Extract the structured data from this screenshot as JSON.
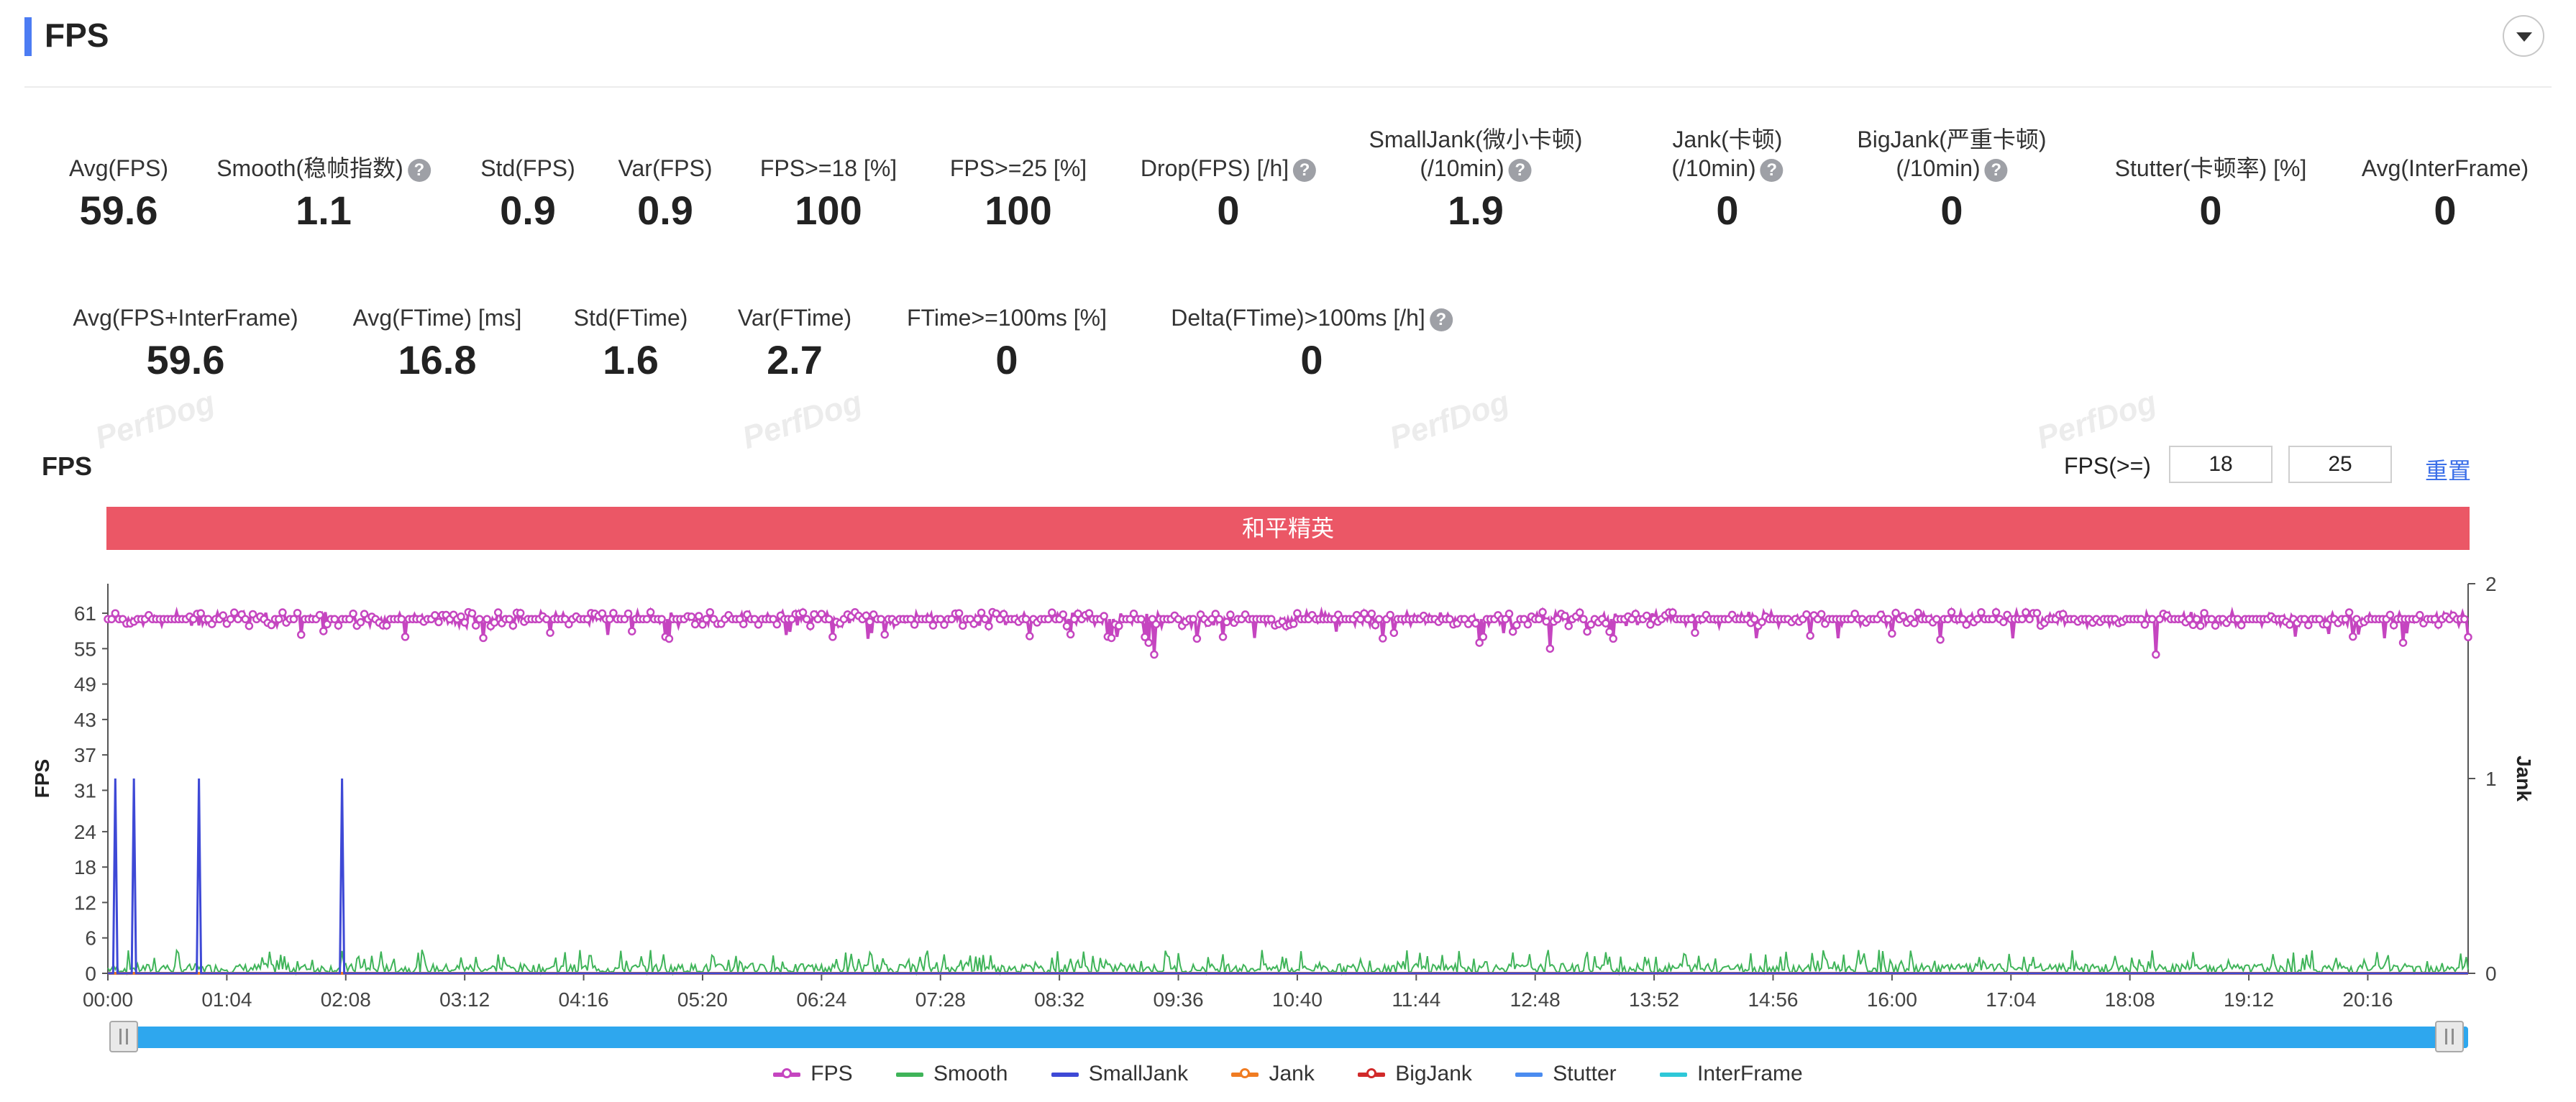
{
  "page": {
    "title": "FPS",
    "watermark": "PerfDog"
  },
  "metrics_row1": [
    {
      "label": "Avg(FPS)",
      "value": "59.6",
      "help": false
    },
    {
      "label": "Smooth(稳帧指数)",
      "value": "1.1",
      "help": true
    },
    {
      "label": "Std(FPS)",
      "value": "0.9",
      "help": false
    },
    {
      "label": "Var(FPS)",
      "value": "0.9",
      "help": false
    },
    {
      "label": "FPS>=18 [%]",
      "value": "100",
      "help": false
    },
    {
      "label": "FPS>=25 [%]",
      "value": "100",
      "help": false
    },
    {
      "label": "Drop(FPS) [/h]",
      "value": "0",
      "help": true
    },
    {
      "label": "SmallJank(微小卡顿)",
      "label2": "(/10min)",
      "value": "1.9",
      "help": true
    },
    {
      "label": "Jank(卡顿)",
      "label2": "(/10min)",
      "value": "0",
      "help": true
    },
    {
      "label": "BigJank(严重卡顿)",
      "label2": "(/10min)",
      "value": "0",
      "help": true
    },
    {
      "label": "Stutter(卡顿率) [%]",
      "value": "0",
      "help": false
    },
    {
      "label": "Avg(InterFrame)",
      "value": "0",
      "help": false
    }
  ],
  "metrics_row2": [
    {
      "label": "Avg(FPS+InterFrame)",
      "value": "59.6",
      "help": false
    },
    {
      "label": "Avg(FTime) [ms]",
      "value": "16.8",
      "help": false
    },
    {
      "label": "Std(FTime)",
      "value": "1.6",
      "help": false
    },
    {
      "label": "Var(FTime)",
      "value": "2.7",
      "help": false
    },
    {
      "label": "FTime>=100ms [%]",
      "value": "0",
      "help": false
    },
    {
      "label": "Delta(FTime)>100ms [/h]",
      "value": "0",
      "help": true
    }
  ],
  "chart_header": {
    "title": "FPS",
    "threshold_label": "FPS(>=)",
    "threshold_1": "18",
    "threshold_2": "25",
    "reset_label": "重置"
  },
  "banner": {
    "label": "和平精英",
    "color": "#eb5766"
  },
  "chart_data": {
    "type": "line",
    "ylabel": "FPS",
    "y2label": "Jank",
    "yticks": [
      "0",
      "6",
      "12",
      "18",
      "24",
      "31",
      "37",
      "43",
      "49",
      "55",
      "61"
    ],
    "y2ticks": [
      "0",
      "1",
      "2"
    ],
    "xticks": [
      "00:00",
      "01:04",
      "02:08",
      "03:12",
      "04:16",
      "05:20",
      "06:24",
      "07:28",
      "08:32",
      "09:36",
      "10:40",
      "11:44",
      "12:48",
      "13:52",
      "14:56",
      "16:00",
      "17:04",
      "18:08",
      "19:12",
      "20:16"
    ],
    "duration_s": 1270,
    "fps_baseline": 60,
    "fps_dips": [
      {
        "t": 560,
        "fps": 56
      },
      {
        "t": 563,
        "fps": 54
      },
      {
        "t": 600,
        "fps": 57
      },
      {
        "t": 738,
        "fps": 56
      },
      {
        "t": 740,
        "fps": 57
      },
      {
        "t": 776,
        "fps": 55
      },
      {
        "t": 1102,
        "fps": 54
      },
      {
        "t": 1235,
        "fps": 56
      },
      {
        "t": 160,
        "fps": 57
      },
      {
        "t": 300,
        "fps": 57
      },
      {
        "t": 390,
        "fps": 57
      }
    ],
    "smalljank_events": [
      {
        "t": 4,
        "value": 1
      },
      {
        "t": 14,
        "value": 1
      },
      {
        "t": 49,
        "value": 1
      },
      {
        "t": 126,
        "value": 1
      }
    ],
    "smooth_range": [
      0,
      4
    ],
    "series": [
      {
        "name": "FPS",
        "color": "#c545c0"
      },
      {
        "name": "Smooth",
        "color": "#3fb459"
      },
      {
        "name": "SmallJank",
        "color": "#3e49d6"
      },
      {
        "name": "Jank",
        "color": "#f07c22"
      },
      {
        "name": "BigJank",
        "color": "#d12a2a"
      },
      {
        "name": "Stutter",
        "color": "#4b8cf0"
      },
      {
        "name": "InterFrame",
        "color": "#2ec8d8"
      }
    ]
  }
}
